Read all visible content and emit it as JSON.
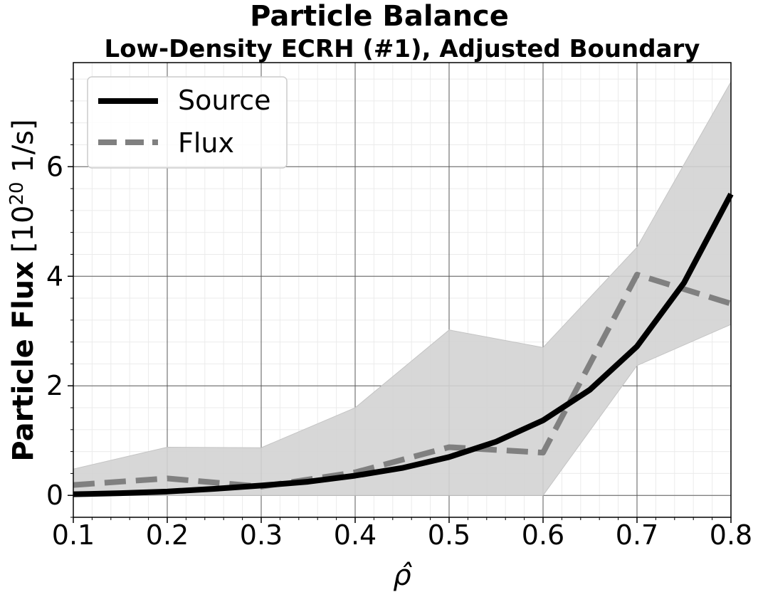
{
  "chart_data": {
    "type": "line",
    "title": "Particle Balance",
    "subtitle": "Low-Density ECRH (#1), Adjusted Boundary",
    "xlabel": "ρ̂",
    "ylabel_bold": "Particle Flux",
    "ylabel_units_prefix": "[10",
    "ylabel_units_exp": "20",
    "ylabel_units_suffix": " 1/s]",
    "xlim": [
      0.1,
      0.8
    ],
    "ylim": [
      -0.4,
      7.9
    ],
    "xticks": [
      0.1,
      0.2,
      0.3,
      0.4,
      0.5,
      0.6,
      0.7,
      0.8
    ],
    "xtick_labels": [
      "0.1",
      "0.2",
      "0.3",
      "0.4",
      "0.5",
      "0.6",
      "0.7",
      "0.8"
    ],
    "yticks": [
      0,
      2,
      4,
      6
    ],
    "ytick_labels": [
      "0",
      "2",
      "4",
      "6"
    ],
    "grid": true,
    "legend_position": "top-left",
    "series": [
      {
        "name": "Source",
        "style": "solid",
        "color": "#000000",
        "x": [
          0.1,
          0.15,
          0.2,
          0.25,
          0.3,
          0.35,
          0.4,
          0.45,
          0.5,
          0.55,
          0.6,
          0.65,
          0.7,
          0.75,
          0.8
        ],
        "y": [
          0.02,
          0.04,
          0.07,
          0.12,
          0.18,
          0.25,
          0.36,
          0.5,
          0.7,
          0.98,
          1.37,
          1.93,
          2.72,
          3.88,
          5.5
        ]
      },
      {
        "name": "Flux",
        "style": "dashed",
        "color": "#808080",
        "x": [
          0.1,
          0.2,
          0.3,
          0.4,
          0.5,
          0.6,
          0.7,
          0.8
        ],
        "y": [
          0.19,
          0.31,
          0.16,
          0.42,
          0.88,
          0.78,
          4.03,
          3.5
        ]
      }
    ],
    "band": {
      "color": "#d3d3d3",
      "x": [
        0.1,
        0.2,
        0.3,
        0.4,
        0.5,
        0.6,
        0.7,
        0.8
      ],
      "upper": [
        0.48,
        0.88,
        0.87,
        1.6,
        3.02,
        2.7,
        4.53,
        7.55
      ],
      "lower": [
        0.0,
        0.0,
        0.0,
        0.0,
        0.0,
        0.0,
        2.37,
        3.12
      ]
    }
  }
}
